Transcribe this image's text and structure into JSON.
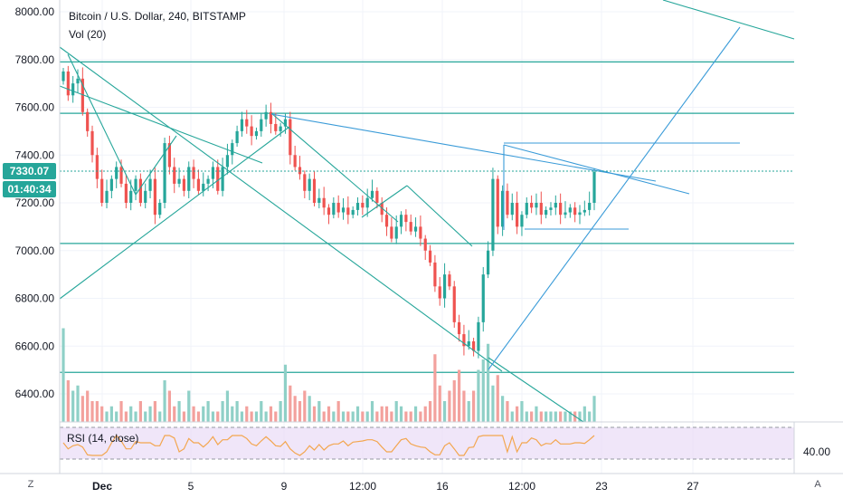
{
  "header": {
    "title": "Bitcoin / U.S. Dollar, 240, BITSTAMP",
    "volume_label": "Vol (20)"
  },
  "price_axis": {
    "ticks": [
      "8000.00",
      "7800.00",
      "7600.00",
      "7400.00",
      "7200.00",
      "7000.00",
      "6800.00",
      "6600.00",
      "6400.00"
    ],
    "last_price": "7330.07",
    "countdown": "01:40:34"
  },
  "time_axis": {
    "ticks": [
      "Dec",
      "5",
      "9",
      "12:00",
      "16",
      "12:00",
      "23",
      "27"
    ]
  },
  "rsi": {
    "label": "RSI (14, close)",
    "tick": "40.00"
  },
  "corner_buttons": {
    "left": "Z",
    "right": "A"
  },
  "colors": {
    "up": "#26a69a",
    "down": "#ef5350",
    "vol_up": "#8fd0c7",
    "vol_down": "#f3a19d",
    "trendline_teal": "#26a69a",
    "trendline_blue": "#3a9bd8",
    "rsi_line": "#f3a64f",
    "rsi_band": "#eadbf7",
    "last_price_line": "#26a69a",
    "badge_price": "#26a69a",
    "badge_time": "#26a69a"
  },
  "chart_data": {
    "type": "candlestick",
    "symbol": "Bitcoin / U.S. Dollar",
    "interval": "240",
    "exchange": "BITSTAMP",
    "ylim": [
      6300,
      8000
    ],
    "x_ticks": [
      "Dec",
      "5",
      "9",
      "12:00",
      "16",
      "12:00",
      "23",
      "27"
    ],
    "y_ticks": [
      8000,
      7800,
      7600,
      7400,
      7200,
      7000,
      6800,
      6600,
      6400
    ],
    "last_price": 7330.07,
    "horizontal_levels": [
      7790,
      7575,
      7030,
      6490
    ],
    "candles_close": [
      7750,
      7650,
      7700,
      7720,
      7580,
      7500,
      7400,
      7300,
      7200,
      7250,
      7300,
      7350,
      7280,
      7200,
      7250,
      7300,
      7200,
      7250,
      7300,
      7150,
      7200,
      7450,
      7350,
      7280,
      7300,
      7250,
      7350,
      7300,
      7250,
      7280,
      7300,
      7350,
      7250,
      7350,
      7400,
      7450,
      7500,
      7550,
      7520,
      7480,
      7500,
      7550,
      7580,
      7530,
      7500,
      7520,
      7550,
      7400,
      7350,
      7320,
      7250,
      7300,
      7200,
      7220,
      7180,
      7150,
      7200,
      7160,
      7180,
      7150,
      7170,
      7200,
      7180,
      7220,
      7250,
      7200,
      7150,
      7100,
      7050,
      7100,
      7150,
      7120,
      7080,
      7100,
      7050,
      7000,
      6950,
      6850,
      6800,
      6900,
      6850,
      6700,
      6650,
      6600,
      6620,
      6580,
      6700,
      6900,
      7000,
      7300,
      7100,
      7250,
      7150,
      7200,
      7100,
      7150,
      7200,
      7180,
      7200,
      7150,
      7170,
      7180,
      7200,
      7150,
      7160,
      7180,
      7150,
      7160,
      7170,
      7200,
      7330
    ],
    "volume_relative": [
      0.9,
      0.4,
      0.3,
      0.35,
      0.25,
      0.3,
      0.2,
      0.2,
      0.15,
      0.1,
      0.15,
      0.1,
      0.2,
      0.1,
      0.15,
      0.1,
      0.2,
      0.1,
      0.15,
      0.2,
      0.1,
      0.4,
      0.3,
      0.15,
      0.2,
      0.1,
      0.3,
      0.15,
      0.1,
      0.15,
      0.2,
      0.1,
      0.1,
      0.2,
      0.3,
      0.15,
      0.2,
      0.1,
      0.15,
      0.1,
      0.1,
      0.2,
      0.1,
      0.15,
      0.1,
      0.2,
      0.55,
      0.35,
      0.25,
      0.2,
      0.3,
      0.25,
      0.15,
      0.2,
      0.1,
      0.15,
      0.1,
      0.2,
      0.1,
      0.1,
      0.1,
      0.15,
      0.1,
      0.1,
      0.2,
      0.1,
      0.15,
      0.15,
      0.1,
      0.2,
      0.15,
      0.1,
      0.1,
      0.15,
      0.1,
      0.15,
      0.2,
      0.65,
      0.35,
      0.2,
      0.3,
      0.4,
      0.5,
      0.3,
      0.2,
      0.3,
      0.5,
      0.6,
      0.75,
      0.35,
      0.45,
      0.25,
      0.2,
      0.1,
      0.15,
      0.2,
      0.1,
      0.1,
      0.15,
      0.1,
      0.1,
      0.1,
      0.1,
      0.1,
      0.1,
      0.1,
      0.1,
      0.1,
      0.15,
      0.1,
      0.25
    ],
    "rsi_level": 40
  }
}
